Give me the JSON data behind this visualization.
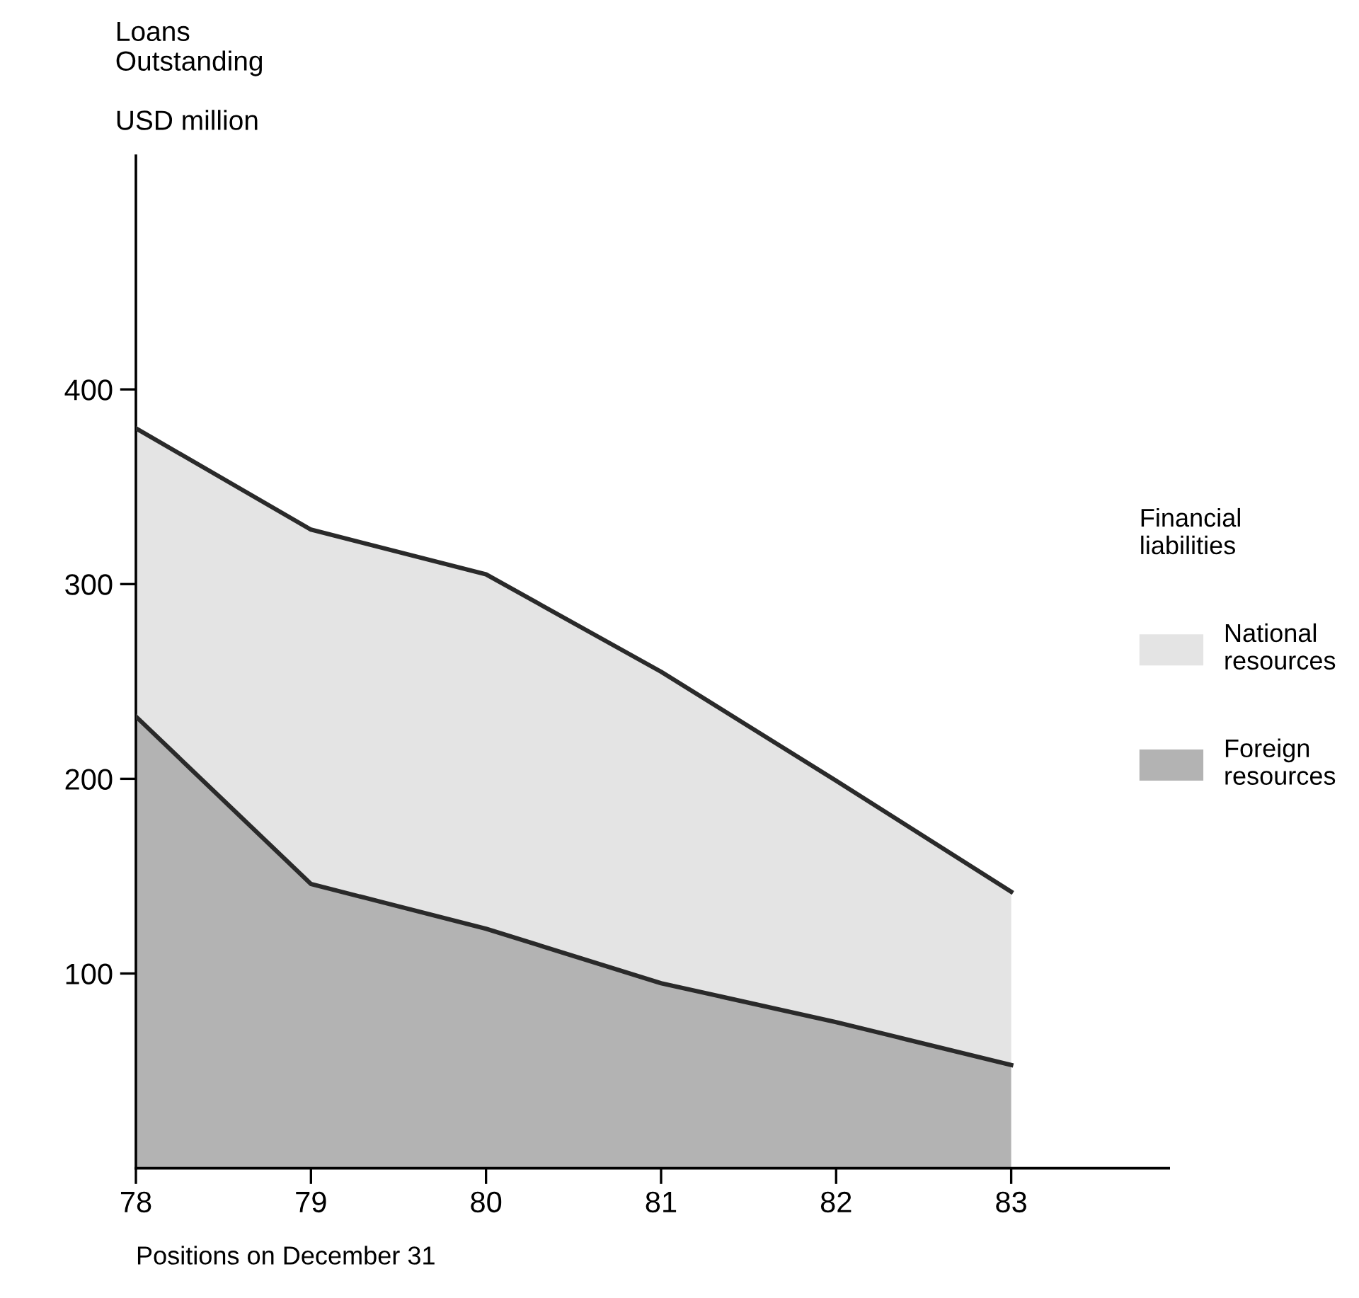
{
  "chart_data": {
    "type": "area",
    "stacked": true,
    "ylabel": "Loans\nOutstanding\n\nUSD million",
    "xlabel": "Positions on December 31",
    "legend_title": "Financial\nliabilities",
    "x": [
      78,
      79,
      80,
      81,
      82,
      83
    ],
    "series": [
      {
        "name": "Foreign\nresources",
        "color": "#b3b3b3",
        "values": [
          232,
          146,
          123,
          95,
          75,
          53
        ]
      },
      {
        "name": "National\nresources",
        "color": "#e4e4e4",
        "values": [
          148,
          182,
          182,
          160,
          124,
          89
        ]
      }
    ],
    "xlim": [
      78,
      83.9
    ],
    "xticks": [
      78,
      79,
      80,
      81,
      82,
      83
    ],
    "ylim": [
      0,
      520
    ],
    "yticks": [
      100,
      200,
      300,
      400
    ],
    "grid": false,
    "legend": "right"
  }
}
